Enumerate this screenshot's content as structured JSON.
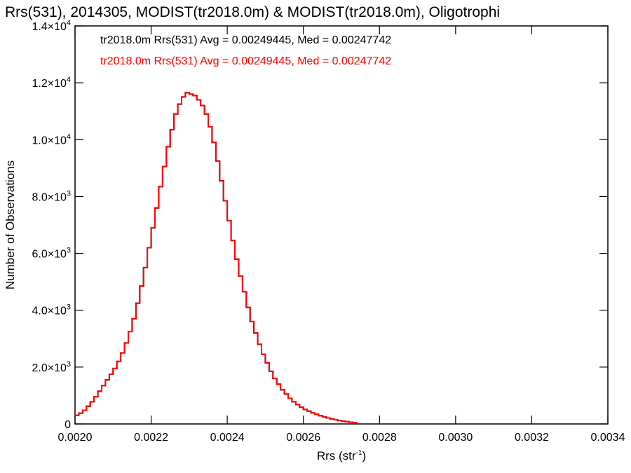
{
  "chart_data": {
    "type": "line",
    "title": "Rrs(531), 2014305, MODIST(tr2018.0m) & MODIST(tr2018.0m), Oligotrophi",
    "xlabel": "Rrs (str",
    "xlabel_sup": "-1",
    "xlabel_tail": ")",
    "ylabel": "Number of Observations",
    "xlim": [
      0.002,
      0.0034
    ],
    "ylim": [
      0,
      14000
    ],
    "grid": false,
    "x_ticks": [
      {
        "value": 0.002,
        "label": "0.0020"
      },
      {
        "value": 0.0022,
        "label": "0.0022"
      },
      {
        "value": 0.0024,
        "label": "0.0024"
      },
      {
        "value": 0.0026,
        "label": "0.0026"
      },
      {
        "value": 0.0028,
        "label": "0.0028"
      },
      {
        "value": 0.003,
        "label": "0.0030"
      },
      {
        "value": 0.0032,
        "label": "0.0032"
      },
      {
        "value": 0.0034,
        "label": "0.0034"
      }
    ],
    "y_ticks": [
      {
        "value": 0,
        "mant": "0",
        "exp": ""
      },
      {
        "value": 2000,
        "mant": "2.0×10",
        "exp": "3"
      },
      {
        "value": 4000,
        "mant": "4.0×10",
        "exp": "3"
      },
      {
        "value": 6000,
        "mant": "6.0×10",
        "exp": "3"
      },
      {
        "value": 8000,
        "mant": "8.0×10",
        "exp": "3"
      },
      {
        "value": 10000,
        "mant": "1.0×10",
        "exp": "4"
      },
      {
        "value": 12000,
        "mant": "1.2×10",
        "exp": "4"
      },
      {
        "value": 14000,
        "mant": "1.4×10",
        "exp": "4"
      }
    ],
    "annotations": [
      {
        "text": "tr2018.0m Rrs(531) Avg = 0.00249445, Med = 0.00247742",
        "color": "#000000"
      },
      {
        "text": "tr2018.0m Rrs(531) Avg = 0.00249445, Med = 0.00247742",
        "color": "#ff0000"
      }
    ],
    "series": [
      {
        "color": "#ff0000",
        "points": [
          [
            0.002,
            300
          ],
          [
            0.00201,
            380
          ],
          [
            0.00202,
            480
          ],
          [
            0.00203,
            620
          ],
          [
            0.00204,
            780
          ],
          [
            0.00205,
            960
          ],
          [
            0.00206,
            1150
          ],
          [
            0.00207,
            1350
          ],
          [
            0.00208,
            1550
          ],
          [
            0.00209,
            1750
          ],
          [
            0.0021,
            1950
          ],
          [
            0.00211,
            2200
          ],
          [
            0.00212,
            2500
          ],
          [
            0.00213,
            2850
          ],
          [
            0.00214,
            3250
          ],
          [
            0.00215,
            3700
          ],
          [
            0.00216,
            4250
          ],
          [
            0.00217,
            4850
          ],
          [
            0.00218,
            5500
          ],
          [
            0.00219,
            6200
          ],
          [
            0.0022,
            6900
          ],
          [
            0.00221,
            7600
          ],
          [
            0.00222,
            8350
          ],
          [
            0.00223,
            9050
          ],
          [
            0.00224,
            9750
          ],
          [
            0.00225,
            10350
          ],
          [
            0.00226,
            10900
          ],
          [
            0.00227,
            11250
          ],
          [
            0.00228,
            11500
          ],
          [
            0.00229,
            11650
          ],
          [
            0.0023,
            11600
          ],
          [
            0.00231,
            11550
          ],
          [
            0.00232,
            11400
          ],
          [
            0.00233,
            11200
          ],
          [
            0.00234,
            10900
          ],
          [
            0.00235,
            10450
          ],
          [
            0.00236,
            9900
          ],
          [
            0.00237,
            9250
          ],
          [
            0.00238,
            8550
          ],
          [
            0.00239,
            7850
          ],
          [
            0.0024,
            7150
          ],
          [
            0.00241,
            6450
          ],
          [
            0.00242,
            5800
          ],
          [
            0.00243,
            5200
          ],
          [
            0.00244,
            4650
          ],
          [
            0.00245,
            4100
          ],
          [
            0.00246,
            3600
          ],
          [
            0.00247,
            3200
          ],
          [
            0.00248,
            2800
          ],
          [
            0.00249,
            2450
          ],
          [
            0.0025,
            2150
          ],
          [
            0.00251,
            1850
          ],
          [
            0.00252,
            1600
          ],
          [
            0.00253,
            1400
          ],
          [
            0.00254,
            1200
          ],
          [
            0.00255,
            1050
          ],
          [
            0.00256,
            900
          ],
          [
            0.00257,
            780
          ],
          [
            0.00258,
            680
          ],
          [
            0.00259,
            590
          ],
          [
            0.0026,
            510
          ],
          [
            0.00261,
            450
          ],
          [
            0.00262,
            390
          ],
          [
            0.00263,
            340
          ],
          [
            0.00264,
            290
          ],
          [
            0.00265,
            250
          ],
          [
            0.00266,
            210
          ],
          [
            0.00267,
            180
          ],
          [
            0.00268,
            150
          ],
          [
            0.00269,
            120
          ],
          [
            0.0027,
            100
          ],
          [
            0.00271,
            80
          ],
          [
            0.00272,
            60
          ],
          [
            0.00273,
            50
          ],
          [
            0.00274,
            40
          ]
        ]
      }
    ]
  }
}
